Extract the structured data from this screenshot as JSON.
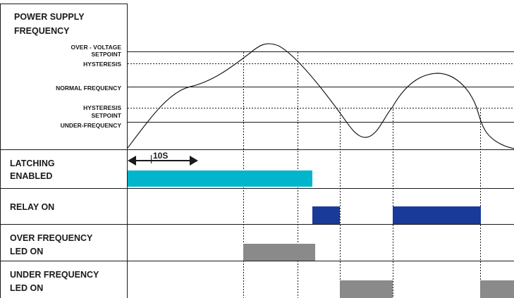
{
  "panels": {
    "power_supply_title": [
      "POWER SUPPLY",
      "FREQUENCY"
    ],
    "latching_title": [
      "LATCHING",
      "ENABLED"
    ],
    "relay_title": [
      "RELAY ON"
    ],
    "over_led_title": [
      "OVER FREQUENCY",
      "LED ON"
    ],
    "under_led_title": [
      "UNDER FREQUENCY",
      "LED ON"
    ]
  },
  "levels": {
    "over_voltage": "OVER - VOLTAGE",
    "setpoint_top": "SETPOINT",
    "hysteresis_top": "HYSTERESIS",
    "normal": "NORMAL FREQUENCY",
    "hysteresis_bottom": "HYSTERESIS",
    "setpoint_bottom": "SETPOINT",
    "under_frequency": "UNDER-FREQUENCY"
  },
  "latch_duration": "10S",
  "colors": {
    "latching_bar": "#00B5CC",
    "relay_bar": "#1A3A9A",
    "led_bar": "#8A8A8A",
    "lines": "#1a1a1a"
  }
}
